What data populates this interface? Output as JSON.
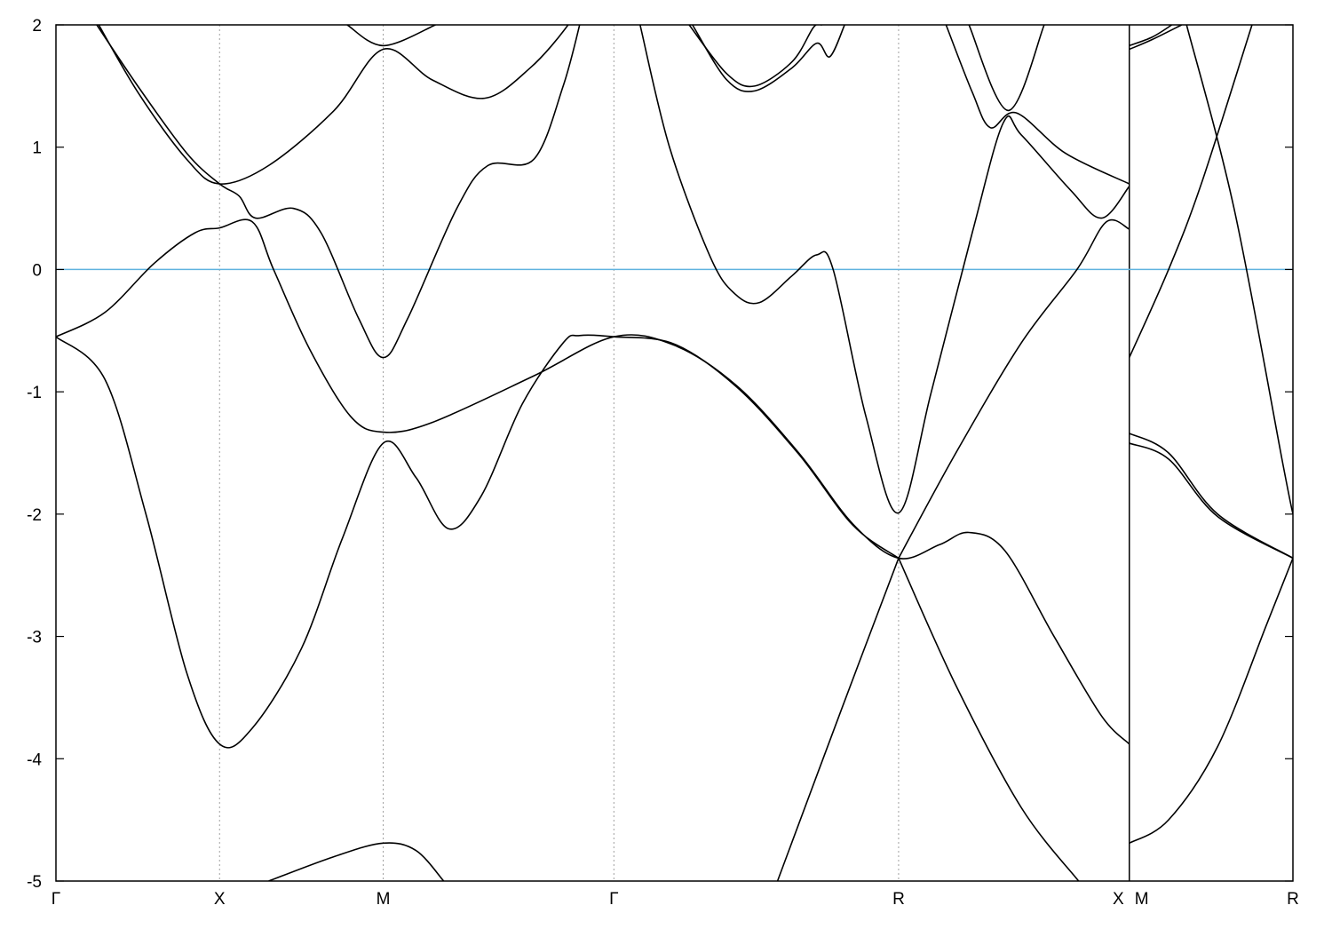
{
  "chart_data": {
    "type": "line",
    "title": "",
    "xlabel": "",
    "ylabel": "",
    "ylim": [
      -5,
      2
    ],
    "xlim": [
      0,
      7.56
    ],
    "yticks": [
      2,
      1,
      0,
      -1,
      -2,
      -3,
      -4,
      -5
    ],
    "ytick_labels": [
      "2",
      "1",
      "0",
      "-1",
      "-2",
      "-3",
      "-4",
      "-5"
    ],
    "xticks": [
      {
        "k": 0,
        "label": "Γ"
      },
      {
        "k": 1.0,
        "label": "X"
      },
      {
        "k": 2.0,
        "label": "M"
      },
      {
        "k": 3.41,
        "label": "Γ"
      },
      {
        "k": 5.15,
        "label": "R"
      },
      {
        "k": 6.56,
        "label": "X"
      },
      {
        "k": 6.56,
        "label": "M"
      },
      {
        "k": 7.56,
        "label": "R"
      }
    ],
    "discontinuity_at": 6.56,
    "fermi_level": 0,
    "grid": "vertical dashed at symmetry points",
    "colors": {
      "bands": "#000000",
      "fermi": "#5fb3df",
      "grid": "#a0a0a0"
    },
    "bands": [
      [
        [
          0,
          -0.55
        ],
        [
          0.3,
          -0.9
        ],
        [
          0.55,
          -2.0
        ],
        [
          0.8,
          -3.3
        ],
        [
          1.0,
          -3.88
        ],
        [
          1.2,
          -3.75
        ],
        [
          1.5,
          -3.1
        ],
        [
          1.75,
          -2.2
        ],
        [
          2.0,
          -1.42
        ],
        [
          2.2,
          -1.7
        ],
        [
          2.4,
          -2.12
        ],
        [
          2.6,
          -1.85
        ],
        [
          2.85,
          -1.1
        ],
        [
          3.1,
          -0.6
        ],
        [
          3.2,
          -0.54
        ],
        [
          3.41,
          -0.55
        ],
        [
          3.78,
          -0.61
        ],
        [
          4.16,
          -0.96
        ],
        [
          4.54,
          -1.51
        ],
        [
          4.87,
          -2.09
        ],
        [
          5.15,
          -2.36
        ]
      ],
      [
        [
          0,
          -0.55
        ],
        [
          0.3,
          -0.35
        ],
        [
          0.6,
          0.05
        ],
        [
          0.85,
          0.3
        ],
        [
          1.0,
          0.34
        ],
        [
          1.2,
          0.39
        ],
        [
          1.33,
          0.0
        ],
        [
          1.55,
          -0.65
        ],
        [
          1.8,
          -1.2
        ],
        [
          2.0,
          -1.33
        ],
        [
          2.3,
          -1.25
        ],
        [
          2.92,
          -0.87
        ],
        [
          3.41,
          -0.55
        ],
        [
          3.78,
          -0.62
        ],
        [
          4.16,
          -0.95
        ],
        [
          4.54,
          -1.5
        ],
        [
          4.87,
          -2.08
        ],
        [
          5.15,
          -2.36
        ],
        [
          5.4,
          -2.25
        ],
        [
          5.58,
          -2.15
        ],
        [
          5.8,
          -2.3
        ],
        [
          6.1,
          -3.0
        ],
        [
          6.39,
          -3.65
        ],
        [
          6.56,
          -3.88
        ]
      ],
      [
        [
          0.2,
          2.1
        ],
        [
          0.5,
          1.5
        ],
        [
          0.8,
          0.95
        ],
        [
          1.0,
          0.7
        ],
        [
          1.12,
          0.6
        ],
        [
          1.22,
          0.42
        ],
        [
          1.45,
          0.5
        ],
        [
          1.62,
          0.3
        ],
        [
          1.85,
          -0.4
        ],
        [
          2.0,
          -0.72
        ],
        [
          2.15,
          -0.4
        ],
        [
          2.45,
          0.5
        ],
        [
          2.64,
          0.85
        ],
        [
          2.92,
          0.9
        ],
        [
          3.1,
          1.5
        ],
        [
          3.21,
          2.05
        ]
      ],
      [
        [
          0.22,
          2.1
        ],
        [
          0.5,
          1.45
        ],
        [
          0.8,
          0.9
        ],
        [
          1.0,
          0.7
        ],
        [
          1.3,
          0.85
        ],
        [
          1.7,
          1.3
        ],
        [
          2.0,
          1.8
        ],
        [
          2.3,
          1.55
        ],
        [
          2.62,
          1.4
        ],
        [
          2.9,
          1.65
        ],
        [
          3.13,
          2.0
        ],
        [
          3.2,
          2.2
        ]
      ],
      [
        [
          1.78,
          2.0
        ],
        [
          2.0,
          1.83
        ],
        [
          2.32,
          2.0
        ]
      ],
      [
        [
          1.3,
          -5.0
        ],
        [
          1.7,
          -4.8
        ],
        [
          2.0,
          -4.69
        ],
        [
          2.2,
          -4.75
        ],
        [
          2.37,
          -5.0
        ]
      ],
      [
        [
          3.57,
          2.0
        ],
        [
          3.75,
          1.0
        ],
        [
          4.0,
          0.1
        ],
        [
          4.15,
          -0.2
        ],
        [
          4.3,
          -0.27
        ],
        [
          4.5,
          -0.05
        ],
        [
          4.65,
          0.12
        ],
        [
          4.75,
          0.0
        ],
        [
          4.95,
          -1.2
        ],
        [
          5.15,
          -1.99
        ],
        [
          5.35,
          -1.0
        ],
        [
          5.6,
          0.3
        ],
        [
          5.79,
          1.2
        ],
        [
          5.9,
          1.1
        ],
        [
          6.2,
          0.65
        ],
        [
          6.39,
          0.42
        ],
        [
          6.56,
          0.68
        ]
      ],
      [
        [
          5.15,
          -2.36
        ],
        [
          5.5,
          -1.5
        ],
        [
          5.9,
          -0.6
        ],
        [
          6.24,
          0.0
        ],
        [
          6.42,
          0.39
        ],
        [
          6.56,
          0.33
        ]
      ],
      [
        [
          4.41,
          -5.0
        ],
        [
          4.8,
          -3.6
        ],
        [
          5.15,
          -2.36
        ]
      ],
      [
        [
          5.15,
          -2.36
        ],
        [
          5.5,
          -3.4
        ],
        [
          5.9,
          -4.4
        ],
        [
          6.25,
          -5.0
        ]
      ],
      [
        [
          3.87,
          2.0
        ],
        [
          4.1,
          1.6
        ],
        [
          4.27,
          1.5
        ],
        [
          4.5,
          1.7
        ],
        [
          4.63,
          1.98
        ],
        [
          4.68,
          2.0
        ]
      ],
      [
        [
          3.89,
          2.0
        ],
        [
          4.1,
          1.55
        ],
        [
          4.27,
          1.46
        ],
        [
          4.5,
          1.65
        ],
        [
          4.65,
          1.85
        ],
        [
          4.73,
          1.74
        ],
        [
          4.82,
          2.0
        ]
      ],
      [
        [
          5.44,
          2.0
        ],
        [
          5.6,
          1.45
        ],
        [
          5.71,
          1.16
        ],
        [
          5.87,
          1.28
        ],
        [
          6.17,
          0.95
        ],
        [
          6.56,
          0.7
        ]
      ],
      [
        [
          5.58,
          2.0
        ],
        [
          5.82,
          1.3
        ],
        [
          6.04,
          2.0
        ]
      ],
      [
        [
          6.56,
          1.8
        ],
        [
          6.7,
          1.88
        ],
        [
          6.88,
          2.0
        ]
      ],
      [
        [
          6.56,
          1.83
        ],
        [
          6.7,
          1.9
        ],
        [
          6.82,
          2.0
        ]
      ],
      [
        [
          6.56,
          -0.72
        ],
        [
          6.8,
          0.0
        ],
        [
          7.0,
          0.7
        ],
        [
          7.31,
          2.0
        ]
      ],
      [
        [
          6.91,
          2.0
        ],
        [
          7.2,
          0.5
        ],
        [
          7.5,
          -1.6
        ],
        [
          7.56,
          -2.0
        ]
      ],
      [
        [
          6.56,
          -1.34
        ],
        [
          6.8,
          -1.5
        ],
        [
          7.1,
          -2.0
        ],
        [
          7.56,
          -2.36
        ]
      ],
      [
        [
          6.56,
          -1.42
        ],
        [
          6.8,
          -1.55
        ],
        [
          7.1,
          -2.02
        ],
        [
          7.56,
          -2.36
        ]
      ],
      [
        [
          6.56,
          -4.69
        ],
        [
          6.8,
          -4.5
        ],
        [
          7.1,
          -3.9
        ],
        [
          7.4,
          -2.9
        ],
        [
          7.56,
          -2.36
        ]
      ]
    ]
  }
}
